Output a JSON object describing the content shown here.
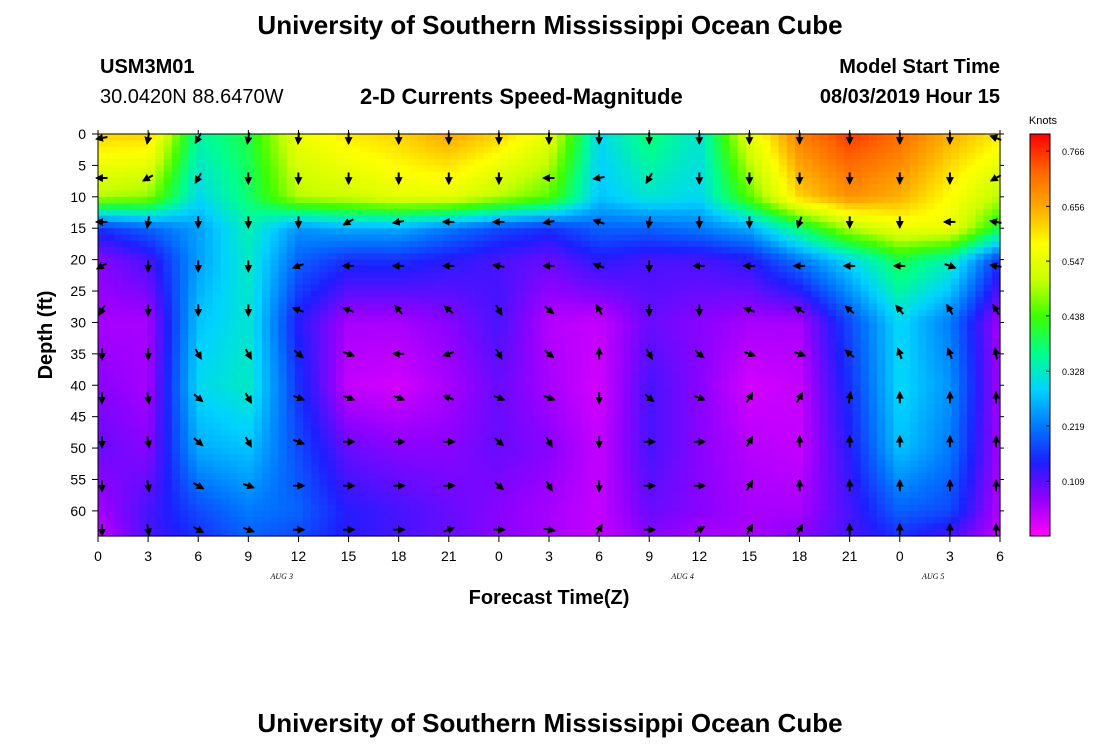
{
  "header": {
    "title": "University of Southern Mississippi Ocean Cube",
    "station_id": "USM3M01",
    "coords": "30.0420N 88.6470W",
    "subtitle": "2-D Currents Speed-Magnitude",
    "model_label": "Model Start Time",
    "model_time": "08/03/2019 Hour 15"
  },
  "footer": {
    "title": "University of Southern Mississippi Ocean Cube"
  },
  "colors": {
    "scale": [
      "#ff00ff",
      "#9400ff",
      "#1e1eff",
      "#0078ff",
      "#00d2ff",
      "#00ff8c",
      "#3cff00",
      "#c8ff00",
      "#ffff00",
      "#ffaa00",
      "#ff6400",
      "#ff0000"
    ]
  },
  "chart_data": {
    "type": "heatmap",
    "title": "2-D Currents Speed-Magnitude",
    "xlabel": "Forecast Time(Z)",
    "ylabel": "Depth (ft)",
    "x_ticks": [
      "0",
      "3",
      "6",
      "9",
      "12",
      "15",
      "18",
      "21",
      "0",
      "3",
      "6",
      "9",
      "12",
      "15",
      "18",
      "21",
      "0",
      "3",
      "6"
    ],
    "x_range_hours": [
      0,
      54
    ],
    "date_labels": [
      {
        "label": "AUG 3",
        "hour": 11
      },
      {
        "label": "AUG 4",
        "hour": 35
      },
      {
        "label": "AUG 5",
        "hour": 50
      }
    ],
    "y_ticks": [
      "0",
      "5",
      "10",
      "15",
      "20",
      "25",
      "30",
      "35",
      "40",
      "45",
      "50",
      "55",
      "60"
    ],
    "y_range_ft": [
      0,
      64
    ],
    "colorbar": {
      "unit": "Knots",
      "range": [
        0,
        0.8
      ],
      "labels": [
        "0.766",
        "0.656",
        "0.547",
        "0.438",
        "0.328",
        "0.219",
        "0.109"
      ]
    },
    "speed_grid": {
      "hours": [
        0,
        3,
        6,
        9,
        12,
        15,
        18,
        21,
        24,
        27,
        30,
        33,
        36,
        39,
        42,
        45,
        48,
        51,
        54
      ],
      "depths_ft": [
        0,
        10,
        15,
        20,
        30,
        40,
        50,
        60,
        64
      ],
      "values": [
        [
          0.62,
          0.62,
          0.35,
          0.4,
          0.56,
          0.6,
          0.62,
          0.66,
          0.62,
          0.55,
          0.3,
          0.38,
          0.32,
          0.55,
          0.7,
          0.76,
          0.72,
          0.65,
          0.6
        ],
        [
          0.5,
          0.48,
          0.3,
          0.38,
          0.5,
          0.52,
          0.55,
          0.55,
          0.5,
          0.45,
          0.28,
          0.32,
          0.3,
          0.45,
          0.62,
          0.68,
          0.65,
          0.58,
          0.5
        ],
        [
          0.16,
          0.2,
          0.25,
          0.34,
          0.24,
          0.26,
          0.26,
          0.22,
          0.18,
          0.16,
          0.2,
          0.2,
          0.22,
          0.26,
          0.38,
          0.5,
          0.56,
          0.56,
          0.4
        ],
        [
          0.08,
          0.12,
          0.25,
          0.33,
          0.2,
          0.16,
          0.16,
          0.14,
          0.12,
          0.1,
          0.14,
          0.12,
          0.12,
          0.14,
          0.22,
          0.3,
          0.4,
          0.34,
          0.16
        ],
        [
          0.06,
          0.06,
          0.28,
          0.32,
          0.14,
          0.06,
          0.06,
          0.08,
          0.12,
          0.05,
          0.04,
          0.1,
          0.08,
          0.06,
          0.06,
          0.18,
          0.3,
          0.22,
          0.06
        ],
        [
          0.08,
          0.06,
          0.3,
          0.33,
          0.16,
          0.04,
          0.03,
          0.06,
          0.1,
          0.06,
          0.03,
          0.12,
          0.08,
          0.03,
          0.04,
          0.16,
          0.3,
          0.24,
          0.06
        ],
        [
          0.1,
          0.08,
          0.26,
          0.28,
          0.18,
          0.1,
          0.08,
          0.08,
          0.1,
          0.08,
          0.04,
          0.12,
          0.08,
          0.05,
          0.04,
          0.14,
          0.28,
          0.22,
          0.06
        ],
        [
          0.06,
          0.12,
          0.18,
          0.22,
          0.2,
          0.14,
          0.12,
          0.1,
          0.08,
          0.06,
          0.04,
          0.1,
          0.08,
          0.06,
          0.06,
          0.12,
          0.2,
          0.18,
          0.05
        ],
        [
          0.04,
          0.12,
          0.16,
          0.2,
          0.18,
          0.14,
          0.12,
          0.1,
          0.08,
          0.06,
          0.04,
          0.08,
          0.06,
          0.06,
          0.08,
          0.12,
          0.16,
          0.12,
          0.04
        ]
      ]
    },
    "vector_grid": {
      "hours": [
        0,
        3,
        6,
        9,
        12,
        15,
        18,
        21,
        24,
        27,
        30,
        33,
        36,
        39,
        42,
        45,
        48,
        51,
        54
      ],
      "depths_ft": [
        0,
        7,
        14,
        21,
        28,
        35,
        42,
        49,
        56,
        63
      ],
      "note": "arrow directions in degrees, 0=right, 90=down (screen)",
      "directions": [
        [
          170,
          100,
          120,
          100,
          95,
          90,
          90,
          90,
          90,
          90,
          90,
          90,
          90,
          90,
          90,
          90,
          90,
          90,
          200
        ],
        [
          180,
          150,
          120,
          90,
          90,
          90,
          90,
          90,
          90,
          180,
          170,
          120,
          90,
          90,
          90,
          90,
          90,
          90,
          150
        ],
        [
          180,
          100,
          90,
          90,
          90,
          150,
          170,
          180,
          180,
          170,
          200,
          100,
          90,
          90,
          110,
          90,
          90,
          180,
          190
        ],
        [
          150,
          90,
          90,
          90,
          160,
          180,
          180,
          180,
          190,
          180,
          200,
          90,
          180,
          180,
          180,
          180,
          180,
          20,
          190
        ],
        [
          120,
          90,
          90,
          90,
          200,
          200,
          230,
          220,
          60,
          40,
          240,
          90,
          90,
          200,
          210,
          220,
          230,
          240,
          240
        ],
        [
          90,
          90,
          60,
          60,
          40,
          20,
          180,
          160,
          60,
          40,
          270,
          60,
          40,
          20,
          20,
          220,
          250,
          250,
          260
        ],
        [
          90,
          80,
          40,
          60,
          20,
          20,
          20,
          200,
          20,
          20,
          90,
          40,
          20,
          300,
          300,
          280,
          270,
          270,
          270
        ],
        [
          90,
          80,
          40,
          60,
          20,
          0,
          0,
          0,
          40,
          60,
          90,
          0,
          0,
          300,
          270,
          270,
          270,
          270,
          270
        ],
        [
          90,
          80,
          30,
          20,
          0,
          0,
          0,
          0,
          40,
          60,
          90,
          0,
          0,
          300,
          270,
          270,
          270,
          270,
          270
        ],
        [
          90,
          80,
          30,
          20,
          0,
          0,
          0,
          340,
          0,
          10,
          300,
          0,
          330,
          300,
          300,
          270,
          270,
          270,
          270
        ]
      ]
    }
  }
}
